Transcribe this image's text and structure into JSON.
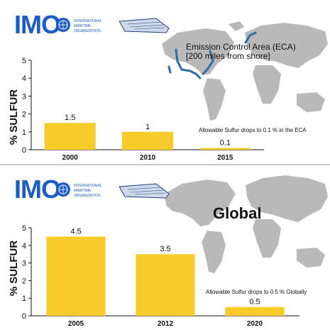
{
  "logo": {
    "mark": "IMO",
    "line1": "INTERNATIONAL",
    "line2": "MARITIME",
    "line3": "ORGANIZATION"
  },
  "icons": [
    "un-emblem-icon",
    "ship-sketch-icon",
    "world-map-icon"
  ],
  "colors": {
    "bar": "#f7cc2a",
    "logo": "#1d5cc7",
    "map": "#b9b9b9",
    "eca": "#2a6ea8"
  },
  "chart_data": [
    {
      "type": "bar",
      "title": "Emission Control Area (ECA)",
      "subtitle": "[200 miles from shore]",
      "ylabel": "% SULFUR",
      "xlabel": "",
      "categories": [
        "2000",
        "2010",
        "2015"
      ],
      "values": [
        1.5,
        1,
        0.1
      ],
      "value_labels": [
        "1.5",
        "1",
        "0.1"
      ],
      "ylim": [
        0,
        5
      ],
      "yticks": [
        "0",
        "1",
        "2",
        "3",
        "4",
        "5"
      ],
      "annotation": "Allowable Sulfur drops to 0.1 % in the ECA",
      "grid": false
    },
    {
      "type": "bar",
      "title": "Global",
      "ylabel": "% SULFUR",
      "xlabel": "",
      "categories": [
        "2005",
        "2012",
        "2020"
      ],
      "values": [
        4.5,
        3.5,
        0.5
      ],
      "value_labels": [
        "4.5",
        "3.5",
        "0.5"
      ],
      "ylim": [
        0,
        5
      ],
      "yticks": [
        "0",
        "1",
        "2",
        "3",
        "4",
        "5"
      ],
      "annotation": "Allowable Sulfur drops to 0.5 % Globally",
      "grid": false
    }
  ]
}
